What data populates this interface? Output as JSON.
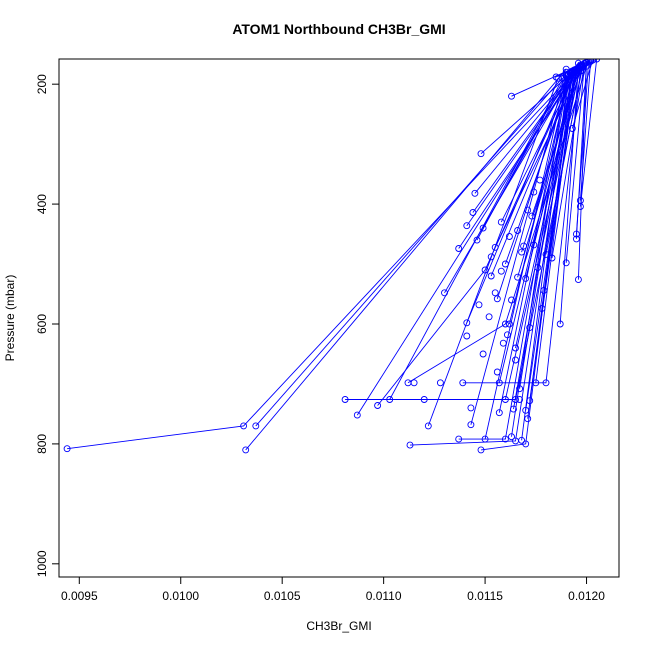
{
  "chart_data": {
    "type": "line",
    "title": "ATOM1 Northbound CH3Br_GMI",
    "xlabel": "CH3Br_GMI",
    "ylabel": "Pressure (mbar)",
    "xlim": [
      0.0094,
      0.01216
    ],
    "ylim": [
      1022,
      158
    ],
    "y_reversed": true,
    "x_ticks": [
      "0.0095",
      "0.0100",
      "0.0105",
      "0.0110",
      "0.0115",
      "0.0120"
    ],
    "x_tick_values": [
      0.0095,
      0.01,
      0.0105,
      0.011,
      0.0115,
      0.012
    ],
    "y_ticks": [
      "200",
      "400",
      "600",
      "800",
      "1000"
    ],
    "y_tick_values": [
      200,
      400,
      600,
      800,
      1000
    ],
    "series_color": "#0000ff",
    "grid": false,
    "legend": "none",
    "profiles": [
      [
        [
          0.00944,
          808
        ],
        [
          0.01031,
          770
        ],
        [
          0.01194,
          180
        ]
      ],
      [
        [
          0.01032,
          810
        ],
        [
          0.0119,
          175
        ]
      ],
      [
        [
          0.01037,
          770
        ],
        [
          0.01188,
          190
        ]
      ],
      [
        [
          0.01081,
          726
        ],
        [
          0.0116,
          726
        ],
        [
          0.01197,
          170
        ]
      ],
      [
        [
          0.01087,
          752
        ],
        [
          0.01195,
          175
        ]
      ],
      [
        [
          0.01097,
          736
        ],
        [
          0.0115,
          510
        ],
        [
          0.01196,
          165
        ]
      ],
      [
        [
          0.01103,
          726
        ],
        [
          0.0119,
          180
        ]
      ],
      [
        [
          0.01112,
          698
        ],
        [
          0.0116,
          600
        ],
        [
          0.012,
          170
        ]
      ],
      [
        [
          0.01113,
          802
        ],
        [
          0.01165,
          795
        ],
        [
          0.01193,
          178
        ]
      ],
      [
        [
          0.0112,
          726
        ],
        [
          0.01165,
          726
        ],
        [
          0.01198,
          172
        ]
      ],
      [
        [
          0.01122,
          770
        ],
        [
          0.01186,
          190
        ]
      ],
      [
        [
          0.0113,
          548
        ],
        [
          0.01193,
          185
        ]
      ],
      [
        [
          0.01137,
          474
        ],
        [
          0.01195,
          180
        ]
      ],
      [
        [
          0.01137,
          792
        ],
        [
          0.0116,
          792
        ],
        [
          0.01191,
          185
        ]
      ],
      [
        [
          0.01139,
          698
        ],
        [
          0.0118,
          698
        ],
        [
          0.01197,
          178
        ]
      ],
      [
        [
          0.01141,
          598
        ],
        [
          0.01192,
          183
        ]
      ],
      [
        [
          0.01141,
          436
        ],
        [
          0.01195,
          175
        ]
      ],
      [
        [
          0.01143,
          768
        ],
        [
          0.01189,
          190
        ]
      ],
      [
        [
          0.01144,
          414
        ],
        [
          0.01194,
          178
        ]
      ],
      [
        [
          0.01145,
          382
        ],
        [
          0.01196,
          172
        ]
      ],
      [
        [
          0.01146,
          460
        ],
        [
          0.0119,
          185
        ]
      ],
      [
        [
          0.01148,
          810
        ],
        [
          0.0117,
          800
        ],
        [
          0.01193,
          180
        ]
      ],
      [
        [
          0.01148,
          316
        ],
        [
          0.01197,
          168
        ]
      ],
      [
        [
          0.01149,
          440
        ],
        [
          0.01192,
          180
        ]
      ],
      [
        [
          0.0115,
          792
        ],
        [
          0.0119,
          186
        ]
      ],
      [
        [
          0.01153,
          520
        ],
        [
          0.01195,
          175
        ]
      ],
      [
        [
          0.01155,
          472
        ],
        [
          0.01198,
          170
        ]
      ],
      [
        [
          0.01156,
          558
        ],
        [
          0.01192,
          182
        ]
      ],
      [
        [
          0.01157,
          698
        ],
        [
          0.01194,
          178
        ]
      ],
      [
        [
          0.01157,
          748
        ],
        [
          0.01191,
          183
        ]
      ],
      [
        [
          0.01158,
          430
        ],
        [
          0.01196,
          172
        ]
      ],
      [
        [
          0.0116,
          500
        ],
        [
          0.01194,
          176
        ]
      ],
      [
        [
          0.01162,
          600
        ],
        [
          0.01192,
          180
        ]
      ],
      [
        [
          0.01163,
          220
        ],
        [
          0.01199,
          165
        ]
      ],
      [
        [
          0.01163,
          788
        ],
        [
          0.0119,
          185
        ]
      ],
      [
        [
          0.01164,
          742
        ],
        [
          0.01193,
          180
        ]
      ],
      [
        [
          0.01165,
          640
        ],
        [
          0.01195,
          175
        ]
      ],
      [
        [
          0.01166,
          522
        ],
        [
          0.01196,
          172
        ]
      ],
      [
        [
          0.01167,
          708
        ],
        [
          0.01192,
          182
        ]
      ],
      [
        [
          0.01168,
          480
        ],
        [
          0.01197,
          170
        ]
      ],
      [
        [
          0.01168,
          794
        ],
        [
          0.01191,
          185
        ]
      ],
      [
        [
          0.0117,
          744
        ],
        [
          0.01194,
          178
        ]
      ],
      [
        [
          0.0117,
          524
        ],
        [
          0.01196,
          173
        ]
      ],
      [
        [
          0.01171,
          758
        ],
        [
          0.01193,
          180
        ]
      ],
      [
        [
          0.01172,
          728
        ],
        [
          0.01195,
          176
        ]
      ],
      [
        [
          0.01173,
          420
        ],
        [
          0.01198,
          168
        ]
      ],
      [
        [
          0.01174,
          468
        ],
        [
          0.01196,
          172
        ]
      ],
      [
        [
          0.01175,
          698
        ],
        [
          0.01194,
          177
        ]
      ],
      [
        [
          0.01176,
          506
        ],
        [
          0.01197,
          170
        ]
      ],
      [
        [
          0.01178,
          574
        ],
        [
          0.01195,
          175
        ]
      ],
      [
        [
          0.0118,
          484
        ],
        [
          0.01198,
          168
        ]
      ],
      [
        [
          0.01183,
          490
        ],
        [
          0.01199,
          166
        ]
      ],
      [
        [
          0.01185,
          188
        ],
        [
          0.01202,
          160
        ]
      ],
      [
        [
          0.01187,
          600
        ],
        [
          0.01196,
          172
        ]
      ],
      [
        [
          0.0119,
          498
        ],
        [
          0.01199,
          166
        ]
      ],
      [
        [
          0.01193,
          274
        ],
        [
          0.01203,
          160
        ]
      ],
      [
        [
          0.01195,
          450
        ],
        [
          0.01201,
          162
        ]
      ],
      [
        [
          0.01195,
          458
        ],
        [
          0.012,
          164
        ]
      ],
      [
        [
          0.01196,
          526
        ],
        [
          0.012,
          164
        ]
      ],
      [
        [
          0.01197,
          394
        ],
        [
          0.01202,
          162
        ]
      ],
      [
        [
          0.01197,
          404
        ],
        [
          0.01205,
          158
        ]
      ]
    ],
    "loose_points": [
      [
        0.01115,
        698
      ],
      [
        0.01128,
        698
      ],
      [
        0.01141,
        620
      ],
      [
        0.01152,
        588
      ],
      [
        0.01155,
        548
      ],
      [
        0.01158,
        512
      ],
      [
        0.01162,
        454
      ],
      [
        0.01166,
        444
      ],
      [
        0.01169,
        470
      ],
      [
        0.01171,
        410
      ],
      [
        0.01174,
        380
      ],
      [
        0.01177,
        360
      ],
      [
        0.01179,
        544
      ],
      [
        0.01159,
        632
      ],
      [
        0.01165,
        660
      ],
      [
        0.01147,
        568
      ],
      [
        0.01153,
        488
      ],
      [
        0.01161,
        618
      ],
      [
        0.01143,
        740
      ],
      [
        0.01167,
        726
      ],
      [
        0.01172,
        606
      ],
      [
        0.01163,
        560
      ],
      [
        0.01149,
        650
      ],
      [
        0.01156,
        680
      ]
    ]
  }
}
